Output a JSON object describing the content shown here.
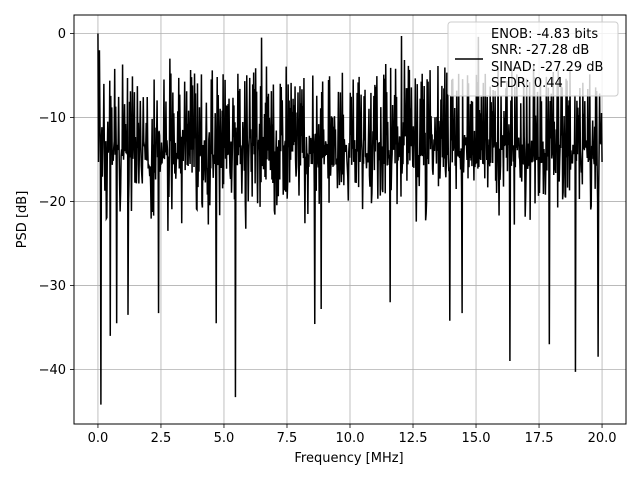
{
  "chart_data": {
    "type": "line",
    "title": "",
    "xlabel": "Frequency [MHz]",
    "ylabel": "PSD [dB]",
    "xlim": [
      -0.95,
      20.95
    ],
    "ylim": [
      -46.5,
      2.2
    ],
    "xticks": [
      0.0,
      2.5,
      5.0,
      7.5,
      10.0,
      12.5,
      15.0,
      17.5,
      20.0
    ],
    "xtick_labels": [
      "0.0",
      "2.5",
      "5.0",
      "7.5",
      "10.0",
      "12.5",
      "15.0",
      "17.5",
      "20.0"
    ],
    "yticks": [
      0,
      -10,
      -20,
      -30,
      -40
    ],
    "ytick_labels": [
      "0",
      "−10",
      "−20",
      "−30",
      "−40"
    ],
    "grid": true,
    "legend_position": "top-right",
    "legend_lines": [
      "ENOB: -4.83 bits",
      "SNR: -27.28 dB",
      "SINAD: -27.29 dB",
      "SFDR: 0.44"
    ],
    "series": [
      {
        "color": "#000000",
        "num_points": 1024,
        "x_range": [
          0.0,
          20.0
        ],
        "noise_band": {
          "upper_dB": -3,
          "lower_dB": -24,
          "typical_min_dB": -16
        },
        "peaks": [
          {
            "x": 0.0,
            "y": 0.0
          },
          {
            "x": 0.05,
            "y": -2.0
          },
          {
            "x": 2.85,
            "y": -3.0
          },
          {
            "x": 6.5,
            "y": -0.5
          },
          {
            "x": 12.05,
            "y": -0.3
          },
          {
            "x": 15.1,
            "y": -0.4
          }
        ],
        "dips": [
          {
            "x": 0.12,
            "y": -44.2
          },
          {
            "x": 0.48,
            "y": -36.0
          },
          {
            "x": 0.75,
            "y": -34.5
          },
          {
            "x": 1.2,
            "y": -33.5
          },
          {
            "x": 2.4,
            "y": -33.3
          },
          {
            "x": 4.7,
            "y": -34.5
          },
          {
            "x": 5.45,
            "y": -43.3
          },
          {
            "x": 8.6,
            "y": -34.6
          },
          {
            "x": 8.85,
            "y": -32.8
          },
          {
            "x": 11.6,
            "y": -32.0
          },
          {
            "x": 13.95,
            "y": -34.2
          },
          {
            "x": 14.45,
            "y": -33.3
          },
          {
            "x": 16.35,
            "y": -39.0
          },
          {
            "x": 17.9,
            "y": -37.0
          },
          {
            "x": 18.95,
            "y": -40.3
          },
          {
            "x": 19.85,
            "y": -38.5
          }
        ]
      }
    ]
  }
}
